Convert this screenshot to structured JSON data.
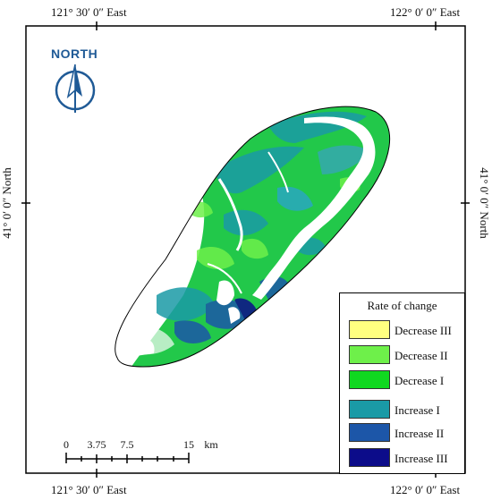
{
  "coords": {
    "top_left": "121° 30′ 0″ East",
    "top_right": "122° 0′ 0″ East",
    "bottom_left": "121° 30′ 0″ East",
    "bottom_right": "122° 0′ 0″ East",
    "left": "41° 0′ 0″ North",
    "right": "41° 0′ 0″ North"
  },
  "north_arrow": {
    "label": "NORTH",
    "icon": "north-arrow-icon",
    "color": "#1f5a96"
  },
  "legend": {
    "title": "Rate of change",
    "items": [
      {
        "label": "Decrease III",
        "color": "#ffff80"
      },
      {
        "label": "Decrease II",
        "color": "#6ef04a"
      },
      {
        "label": "Decrease I",
        "color": "#10d820"
      },
      {
        "label": "Increase I",
        "color": "#1a9aa6"
      },
      {
        "label": "Increase II",
        "color": "#1c56a8"
      },
      {
        "label": "Increase III",
        "color": "#0c0c8a"
      }
    ]
  },
  "scale_bar": {
    "ticks": [
      "0",
      "3.75",
      "7.5",
      "15"
    ],
    "unit": "km"
  }
}
